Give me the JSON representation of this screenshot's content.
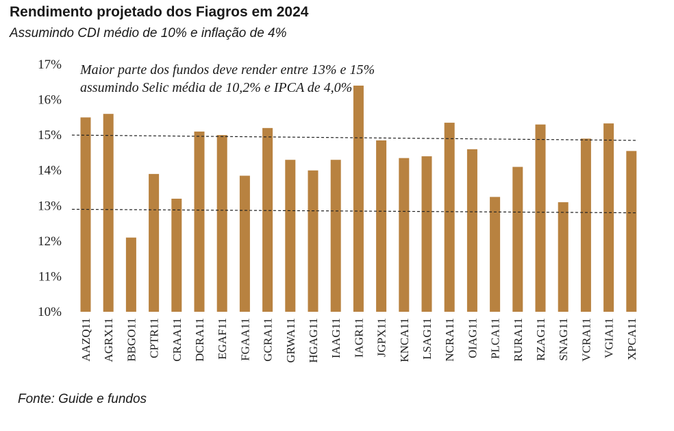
{
  "header": {
    "title": "Rendimento projetado dos Fiagros em 2024",
    "subtitle": "Assumindo CDI médio de 10% e inflação de 4%"
  },
  "footer": {
    "source": "Fonte: Guide e fundos"
  },
  "chart_data": {
    "type": "bar",
    "categories": [
      "AAZQ11",
      "AGRX11",
      "BBGO11",
      "CPTR11",
      "CRAA11",
      "DCRA11",
      "EGAF11",
      "FGAA11",
      "GCRA11",
      "GRWA11",
      "HGAG11",
      "IAAG11",
      "IAGR11",
      "JGPX11",
      "KNCA11",
      "LSAG11",
      "NCRA11",
      "OIAG11",
      "PLCA11",
      "RURA11",
      "RZAG11",
      "SNAG11",
      "VCRA11",
      "VGIA11",
      "XPCA11"
    ],
    "values": [
      15.5,
      15.6,
      12.1,
      13.9,
      13.2,
      15.1,
      15.0,
      13.85,
      15.2,
      14.3,
      14.0,
      14.3,
      16.4,
      14.85,
      14.35,
      14.4,
      15.35,
      14.6,
      13.25,
      14.1,
      15.3,
      13.1,
      14.9,
      15.33,
      14.55
    ],
    "ylim": [
      10,
      17
    ],
    "yticks": [
      "10%",
      "11%",
      "12%",
      "13%",
      "14%",
      "15%",
      "16%",
      "17%"
    ],
    "annotation_lines": [
      "Maior parte dos fundos deve render entre 13% e 15%",
      "assumindo Selic média de 10,2% e IPCA de 4,0%"
    ],
    "reference_lines": [
      {
        "y_start": 15.0,
        "y_end": 14.85
      },
      {
        "y_start": 12.9,
        "y_end": 12.8
      }
    ],
    "bar_color": "#b88240",
    "grid": false
  }
}
